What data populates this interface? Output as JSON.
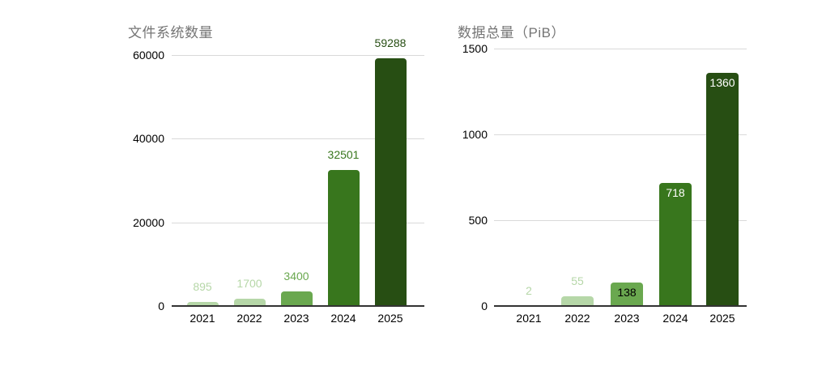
{
  "page": {
    "background": "#ffffff"
  },
  "chart_data": [
    {
      "type": "bar",
      "title": "文件系统数量",
      "categories": [
        "2021",
        "2022",
        "2023",
        "2024",
        "2025"
      ],
      "values": [
        895,
        1700,
        3400,
        32501,
        59288
      ],
      "data_labels": [
        "895",
        "1700",
        "3400",
        "32501",
        "59288"
      ],
      "xlabel": "",
      "ylabel": "",
      "ylim": [
        0,
        60000
      ],
      "yticks": [
        0,
        20000,
        40000,
        60000
      ],
      "grid": true,
      "legend": "none",
      "bar_colors": [
        "#b6d7a8",
        "#b6d7a8",
        "#6aa84f",
        "#38761d",
        "#274e13"
      ],
      "data_label_colors": [
        "#b6d7a8",
        "#b6d7a8",
        "#6aa84f",
        "#38761d",
        "#274e13"
      ],
      "data_label_placement": [
        "above",
        "above",
        "above",
        "above",
        "above"
      ]
    },
    {
      "type": "bar",
      "title": "数据总量（PiB）",
      "categories": [
        "2021",
        "2022",
        "2023",
        "2024",
        "2025"
      ],
      "values": [
        2,
        55,
        138,
        718,
        1360
      ],
      "data_labels": [
        "2",
        "55",
        "138",
        "718",
        "1360"
      ],
      "xlabel": "",
      "ylabel": "",
      "ylim": [
        0,
        1500
      ],
      "yticks": [
        0,
        500,
        1000,
        1500
      ],
      "grid": true,
      "legend": "none",
      "bar_colors": [
        "#b6d7a8",
        "#b6d7a8",
        "#6aa84f",
        "#38761d",
        "#274e13"
      ],
      "data_label_colors": [
        "#b6d7a8",
        "#b6d7a8",
        "#000000",
        "#ffffff",
        "#ffffff"
      ],
      "data_label_placement": [
        "above",
        "above",
        "inside",
        "inside",
        "inside"
      ]
    }
  ],
  "style": {
    "title_color": "#757575",
    "axis_text_color": "#000000",
    "gridline_color": "#d9d9d9",
    "baseline_color": "#333333",
    "background": "#ffffff"
  }
}
